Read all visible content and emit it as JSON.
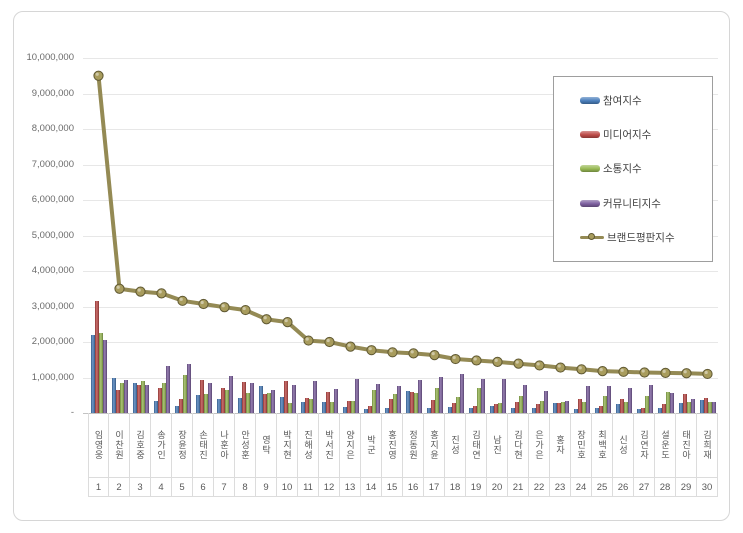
{
  "chart_data": {
    "type": "bar",
    "title": "",
    "legend_position": "top-right",
    "grid": true,
    "categories": [
      "임영웅",
      "이찬원",
      "김호중",
      "송가인",
      "장윤정",
      "손태진",
      "나훈아",
      "안성훈",
      "영탁",
      "박지현",
      "진해성",
      "박서진",
      "양지은",
      "박군",
      "홍진영",
      "정동원",
      "홍지윤",
      "진성",
      "김태연",
      "남진",
      "김다현",
      "은가은",
      "홍자",
      "장민호",
      "최백호",
      "신성",
      "김연자",
      "설운도",
      "태진아",
      "김희재"
    ],
    "ranks": [
      "1",
      "2",
      "3",
      "4",
      "5",
      "6",
      "7",
      "8",
      "9",
      "10",
      "11",
      "12",
      "13",
      "14",
      "15",
      "16",
      "17",
      "18",
      "19",
      "20",
      "21",
      "22",
      "23",
      "24",
      "25",
      "26",
      "27",
      "28",
      "29",
      "30"
    ],
    "series": [
      {
        "name": "참여지수",
        "color": "#4A7EBB",
        "values": [
          2200000,
          1000000,
          850000,
          350000,
          190000,
          510000,
          390000,
          420000,
          750000,
          440000,
          320000,
          300000,
          160000,
          110000,
          130000,
          630000,
          150000,
          160000,
          130000,
          200000,
          150000,
          130000,
          280000,
          110000,
          130000,
          260000,
          110000,
          150000,
          270000,
          370000
        ]
      },
      {
        "name": "미디어지수",
        "color": "#BE4B48",
        "values": [
          3150000,
          640000,
          780000,
          710000,
          400000,
          940000,
          710000,
          870000,
          540000,
          900000,
          420000,
          580000,
          340000,
          200000,
          400000,
          580000,
          380000,
          290000,
          190000,
          250000,
          300000,
          250000,
          280000,
          400000,
          210000,
          400000,
          150000,
          250000,
          540000,
          420000
        ]
      },
      {
        "name": "소통지수",
        "color": "#98B954",
        "values": [
          2250000,
          850000,
          910000,
          850000,
          1070000,
          540000,
          640000,
          560000,
          570000,
          280000,
          400000,
          320000,
          340000,
          640000,
          530000,
          550000,
          700000,
          460000,
          710000,
          280000,
          470000,
          350000,
          300000,
          310000,
          470000,
          300000,
          470000,
          600000,
          300000,
          300000
        ]
      },
      {
        "name": "커뮤니티지수",
        "color": "#7D60A0",
        "values": [
          2050000,
          930000,
          800000,
          1320000,
          1370000,
          850000,
          1040000,
          850000,
          660000,
          800000,
          900000,
          680000,
          960000,
          830000,
          750000,
          920000,
          1020000,
          1110000,
          950000,
          970000,
          800000,
          620000,
          330000,
          750000,
          750000,
          710000,
          780000,
          560000,
          400000,
          310000
        ]
      }
    ],
    "line_series": {
      "name": "브랜드평판지수",
      "color": "#948A54",
      "marker_fill": "#A89C5D",
      "marker_stroke": "#5E5731",
      "values": [
        9500000,
        3500000,
        3420000,
        3370000,
        3160000,
        3070000,
        2980000,
        2900000,
        2640000,
        2560000,
        2040000,
        2000000,
        1870000,
        1770000,
        1710000,
        1680000,
        1630000,
        1520000,
        1480000,
        1440000,
        1390000,
        1340000,
        1280000,
        1230000,
        1180000,
        1160000,
        1140000,
        1130000,
        1120000,
        1100000
      ]
    },
    "y_axis": {
      "min": 0,
      "max": 10000000,
      "step": 1000000,
      "labels": [
        "10,000,000",
        "9,000,000",
        "8,000,000",
        "7,000,000",
        "6,000,000",
        "5,000,000",
        "4,000,000",
        "3,000,000",
        "2,000,000",
        "1,000,000",
        "-"
      ]
    }
  }
}
